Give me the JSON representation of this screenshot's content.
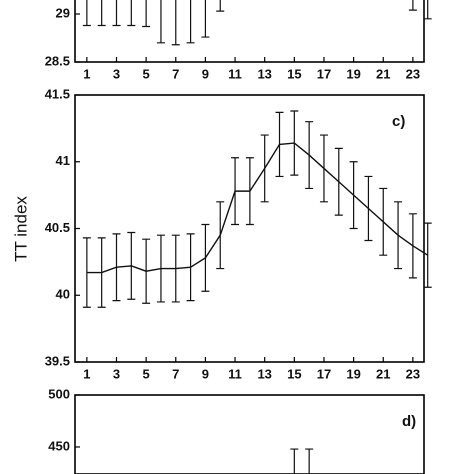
{
  "chart_data": [
    {
      "type": "errorbar",
      "x": [
        1,
        2,
        3,
        4,
        5,
        6,
        7,
        8,
        9,
        10,
        11,
        12,
        13,
        14,
        15,
        16,
        17,
        18,
        19,
        20,
        21,
        22,
        23,
        24
      ],
      "lower_ends": [
        28.88,
        28.88,
        28.88,
        28.88,
        28.87,
        28.7,
        28.68,
        28.7,
        28.76,
        29.03,
        null,
        null,
        null,
        null,
        null,
        null,
        null,
        null,
        null,
        null,
        null,
        null,
        29.04,
        28.95
      ],
      "xlim": [
        0.2,
        23.75
      ],
      "ylim": [
        28.5,
        29.2
      ],
      "xticks": [
        1,
        3,
        5,
        7,
        9,
        11,
        13,
        15,
        17,
        19,
        21,
        23
      ],
      "yticks": [
        28.5,
        29
      ]
    },
    {
      "type": "errorbar",
      "annotation": "c)",
      "ylabel": "TT index",
      "x": [
        1,
        2,
        3,
        4,
        5,
        6,
        7,
        8,
        9,
        10,
        11,
        12,
        13,
        14,
        15,
        16,
        17,
        18,
        19,
        20,
        21,
        22,
        23,
        24
      ],
      "values": [
        40.17,
        40.17,
        40.21,
        40.22,
        40.18,
        40.2,
        40.2,
        40.21,
        40.28,
        40.45,
        40.78,
        40.78,
        40.95,
        41.13,
        41.14,
        41.05,
        40.95,
        40.85,
        40.75,
        40.65,
        40.55,
        40.45,
        40.37,
        40.3
      ],
      "errors": [
        0.26,
        0.26,
        0.25,
        0.25,
        0.24,
        0.25,
        0.25,
        0.25,
        0.25,
        0.25,
        0.25,
        0.25,
        0.25,
        0.24,
        0.24,
        0.25,
        0.25,
        0.25,
        0.25,
        0.24,
        0.25,
        0.25,
        0.24,
        0.24
      ],
      "xlim": [
        0.2,
        23.75
      ],
      "ylim": [
        39.5,
        41.5
      ],
      "xticks": [
        1,
        3,
        5,
        7,
        9,
        11,
        13,
        15,
        17,
        19,
        21,
        23
      ],
      "yticks": [
        39.5,
        40,
        40.5,
        41,
        41.5
      ]
    },
    {
      "type": "errorbar",
      "annotation": "d)",
      "x": [
        15,
        16
      ],
      "upper_ends": [
        448,
        448
      ],
      "xlim": [
        0.2,
        23.75
      ],
      "ylim": [
        424,
        500
      ],
      "yticks": [
        450,
        500
      ]
    }
  ]
}
